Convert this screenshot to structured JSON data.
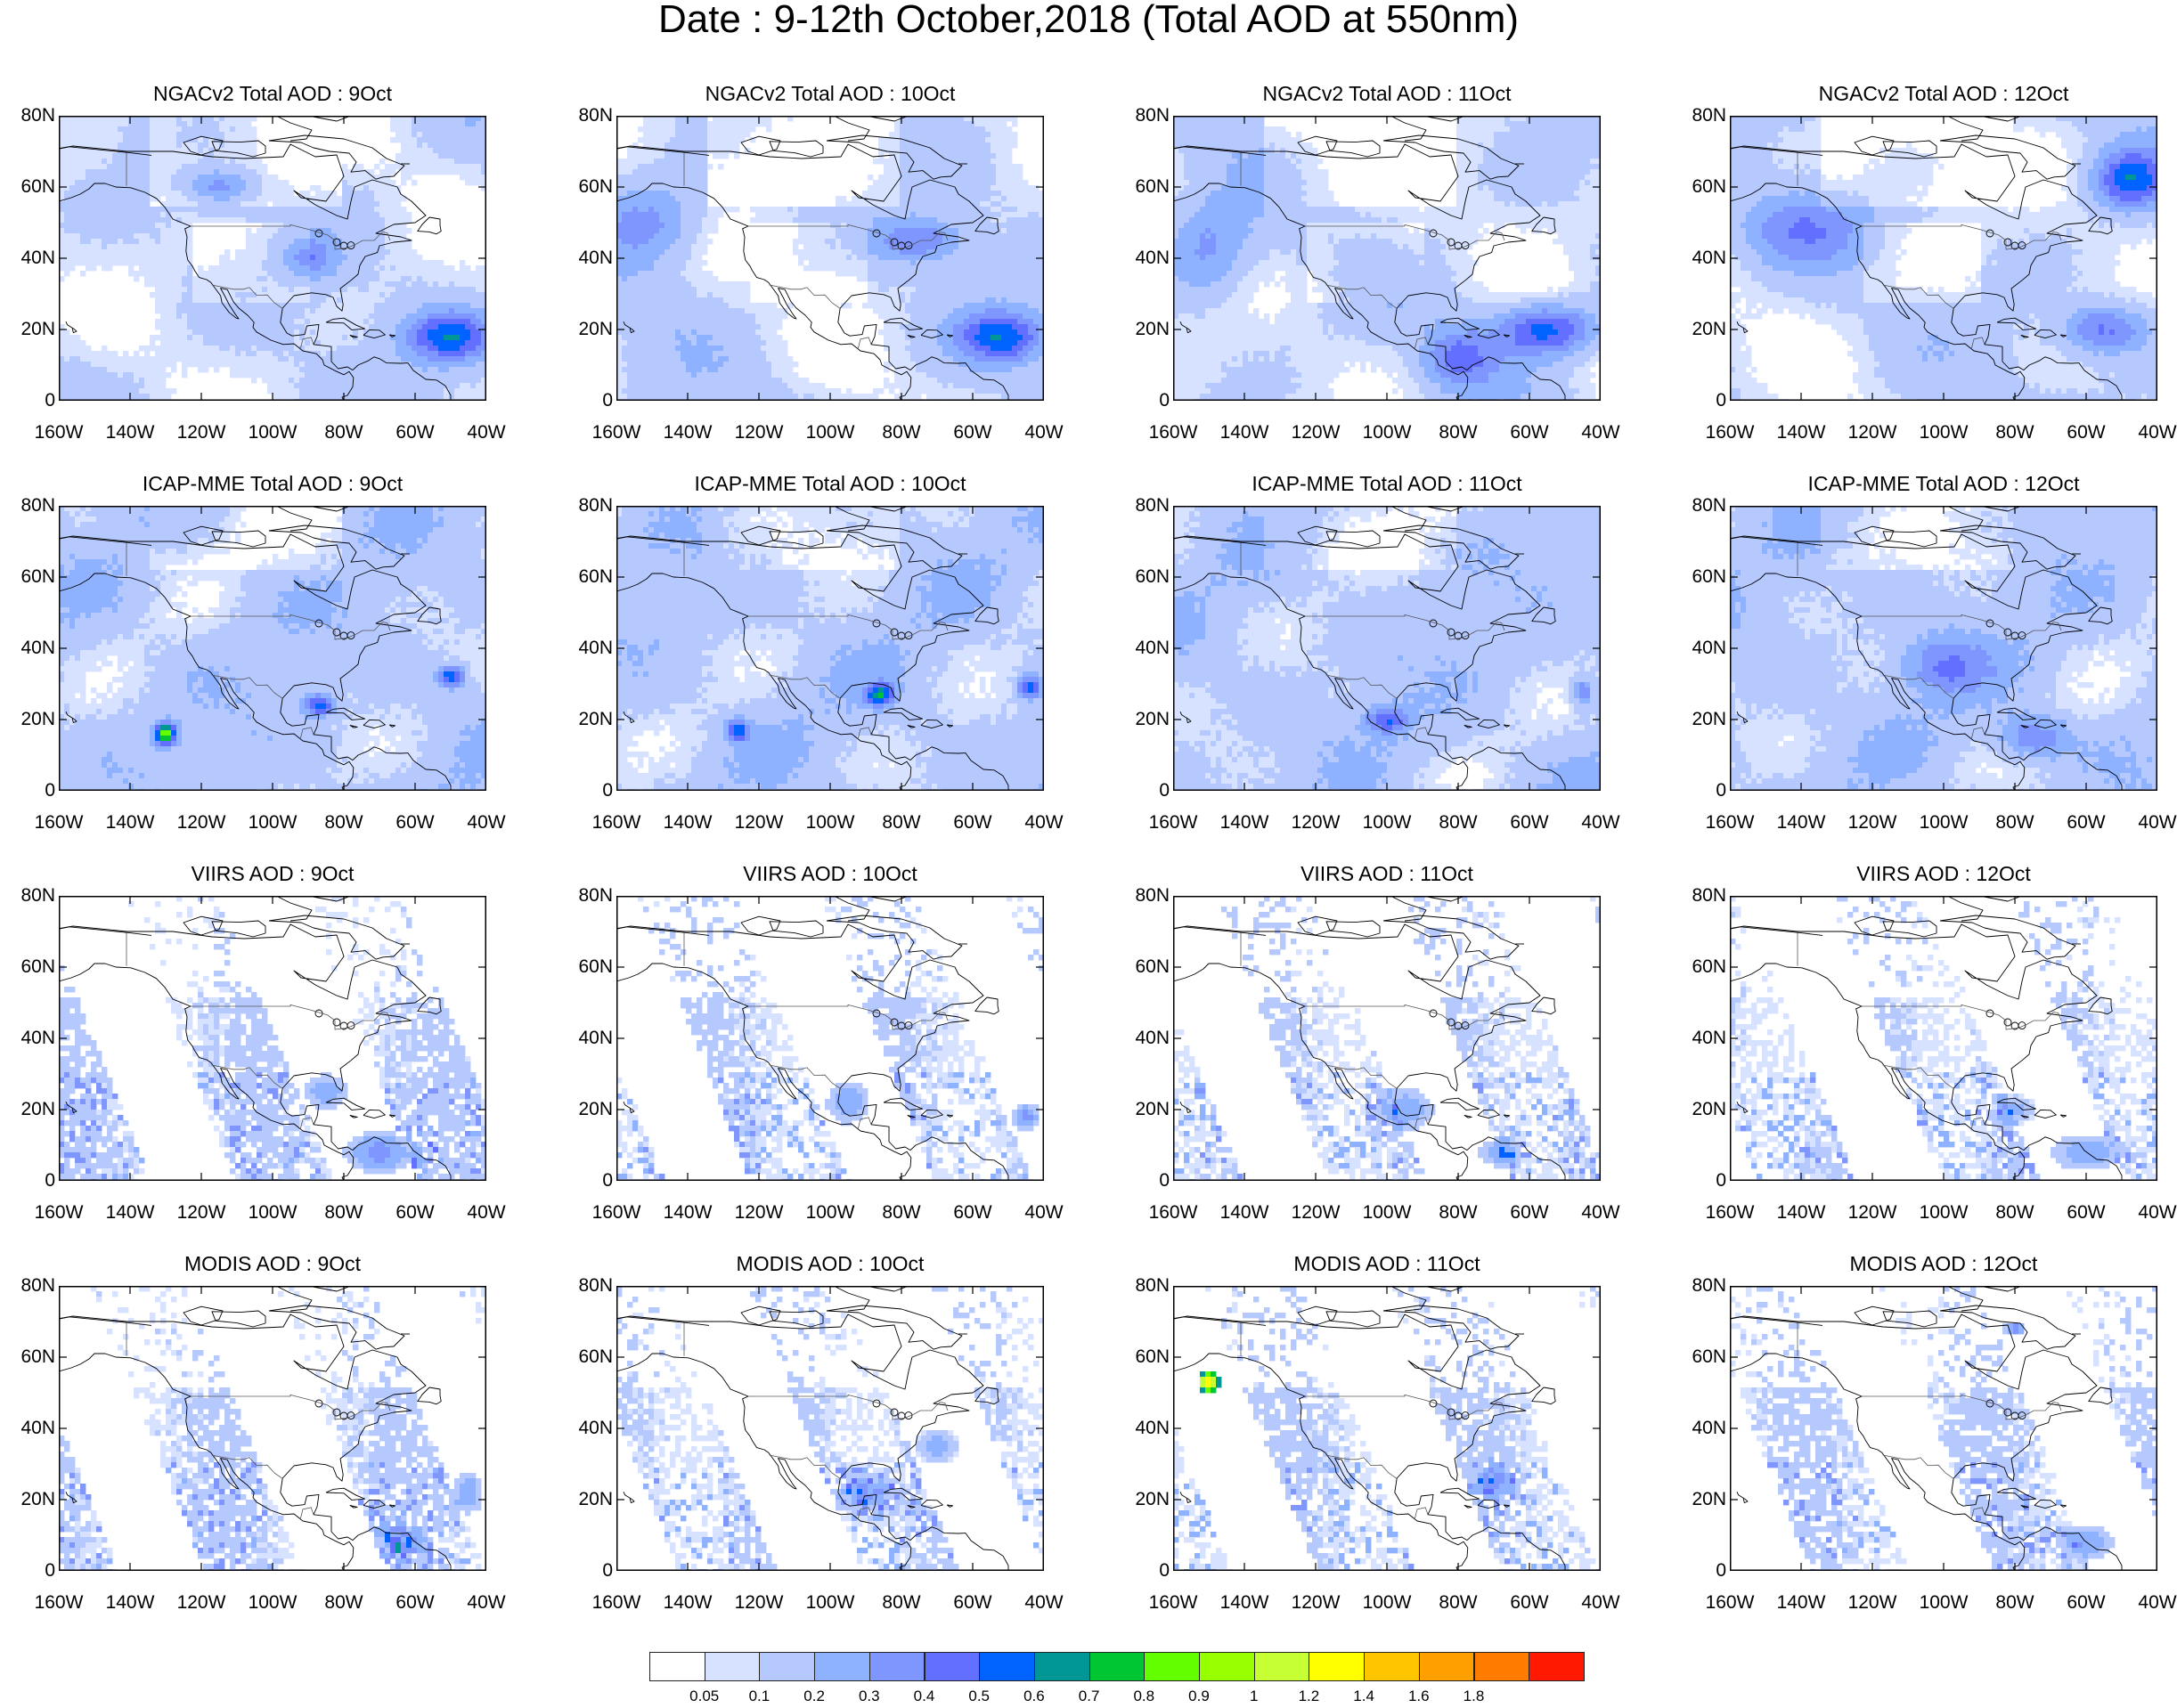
{
  "title": "Date : 9-12th October,2018 (Total AOD at 550nm)",
  "rows": [
    {
      "product": "NGACv2 Total AOD",
      "panels": [
        {
          "title": "NGACv2 Total AOD : 9Oct",
          "field": "smooth",
          "seed": 11,
          "plumes": [
            [
              -50,
              18,
              12,
              7,
              0.45
            ],
            [
              -115,
              60,
              10,
              5,
              0.3
            ],
            [
              -90,
              40,
              8,
              6,
              0.25
            ]
          ]
        },
        {
          "title": "NGACv2 Total AOD : 10Oct",
          "field": "smooth",
          "seed": 12,
          "plumes": [
            [
              -52,
              18,
              12,
              7,
              0.45
            ],
            [
              -75,
              45,
              12,
              6,
              0.3
            ],
            [
              -150,
              50,
              14,
              12,
              0.25
            ]
          ]
        },
        {
          "title": "NGACv2 Total AOD : 11Oct",
          "field": "smooth",
          "seed": 13,
          "plumes": [
            [
              -55,
              20,
              14,
              7,
              0.45
            ],
            [
              -150,
              42,
              12,
              14,
              0.25
            ],
            [
              -80,
              12,
              10,
              8,
              0.3
            ]
          ]
        },
        {
          "title": "NGACv2 Total AOD : 12Oct",
          "field": "smooth",
          "seed": 14,
          "plumes": [
            [
              -48,
              62,
              10,
              8,
              0.45
            ],
            [
              -55,
              20,
              12,
              7,
              0.35
            ],
            [
              -140,
              48,
              18,
              10,
              0.25
            ]
          ]
        }
      ]
    },
    {
      "product": "ICAP-MME Total AOD",
      "panels": [
        {
          "title": "ICAP-MME Total AOD : 9Oct",
          "field": "ensemble",
          "seed": 21,
          "plumes": [
            [
              -130,
              16,
              3,
              3,
              0.75
            ],
            [
              -87,
              24,
              4,
              3,
              0.45
            ],
            [
              -50,
              32,
              4,
              3,
              0.45
            ]
          ]
        },
        {
          "title": "ICAP-MME Total AOD : 10Oct",
          "field": "ensemble",
          "seed": 22,
          "plumes": [
            [
              -86,
              27,
              4,
              3,
              0.5
            ],
            [
              -126,
              17,
              3,
              3,
              0.45
            ],
            [
              -44,
              29,
              3,
              3,
              0.45
            ]
          ]
        },
        {
          "title": "ICAP-MME Total AOD : 11Oct",
          "field": "ensemble",
          "seed": 23,
          "plumes": [
            [
              -100,
              20,
              6,
              4,
              0.35
            ],
            [
              -45,
              28,
              3,
              4,
              0.3
            ]
          ]
        },
        {
          "title": "ICAP-MME Total AOD : 12Oct",
          "field": "ensemble",
          "seed": 24,
          "plumes": [
            [
              -75,
              15,
              10,
              6,
              0.3
            ],
            [
              -100,
              35,
              12,
              8,
              0.25
            ]
          ]
        }
      ]
    },
    {
      "product": "VIIRS AOD",
      "panels": [
        {
          "title": "VIIRS AOD : 9Oct",
          "field": "satellite",
          "seed": 31,
          "plumes": [
            [
              -70,
              8,
              10,
              6,
              0.35
            ],
            [
              -85,
              25,
              6,
              5,
              0.3
            ]
          ]
        },
        {
          "title": "VIIRS AOD : 10Oct",
          "field": "satellite",
          "seed": 32,
          "plumes": [
            [
              -95,
              22,
              6,
              6,
              0.3
            ],
            [
              -45,
              18,
              4,
              4,
              0.35
            ]
          ]
        },
        {
          "title": "VIIRS AOD : 11Oct",
          "field": "satellite",
          "seed": 33,
          "plumes": [
            [
              -95,
              20,
              8,
              6,
              0.3
            ],
            [
              -68,
              8,
              6,
              4,
              0.3
            ]
          ]
        },
        {
          "title": "VIIRS AOD : 12Oct",
          "field": "satellite",
          "seed": 34,
          "plumes": [
            [
              -60,
              8,
              10,
              5,
              0.3
            ],
            [
              -80,
              20,
              6,
              4,
              0.25
            ]
          ]
        }
      ]
    },
    {
      "product": "MODIS AOD",
      "panels": [
        {
          "title": "MODIS AOD : 9Oct",
          "field": "satellite",
          "seed": 41,
          "plumes": [
            [
              -65,
              8,
              6,
              5,
              0.3
            ],
            [
              -45,
              22,
              4,
              6,
              0.3
            ]
          ]
        },
        {
          "title": "MODIS AOD : 10Oct",
          "field": "satellite",
          "seed": 42,
          "plumes": [
            [
              -90,
              22,
              8,
              5,
              0.3
            ],
            [
              -70,
              35,
              6,
              5,
              0.25
            ]
          ]
        },
        {
          "title": "MODIS AOD : 11Oct",
          "field": "satellite",
          "seed": 43,
          "plumes": [
            [
              -150,
              53,
              3,
              3,
              1.5
            ],
            [
              -70,
              25,
              6,
              5,
              0.25
            ]
          ]
        },
        {
          "title": "MODIS AOD : 12Oct",
          "field": "satellite",
          "seed": 44,
          "plumes": [
            [
              -60,
              8,
              8,
              5,
              0.3
            ],
            [
              -80,
              68,
              3,
              2,
              0.35
            ]
          ]
        }
      ]
    }
  ],
  "lat_ticks": [
    "80N",
    "60N",
    "40N",
    "20N",
    "0"
  ],
  "lon_ticks": [
    "160W",
    "140W",
    "120W",
    "100W",
    "80W",
    "60W",
    "40W"
  ],
  "colorbar": {
    "thresholds": [
      "0.05",
      "0.1",
      "0.2",
      "0.3",
      "0.4",
      "0.5",
      "0.6",
      "0.7",
      "0.8",
      "0.9",
      "1",
      "1.2",
      "1.4",
      "1.6",
      "1.8"
    ],
    "colors": [
      "#ffffff",
      "#d6e2ff",
      "#b5c9ff",
      "#8eb2ff",
      "#7f96ff",
      "#6370ff",
      "#0063ff",
      "#009696",
      "#00c633",
      "#63ff00",
      "#96ff00",
      "#c6ff33",
      "#ffff00",
      "#ffc600",
      "#ffa000",
      "#ff7c00",
      "#ff1900"
    ]
  }
}
